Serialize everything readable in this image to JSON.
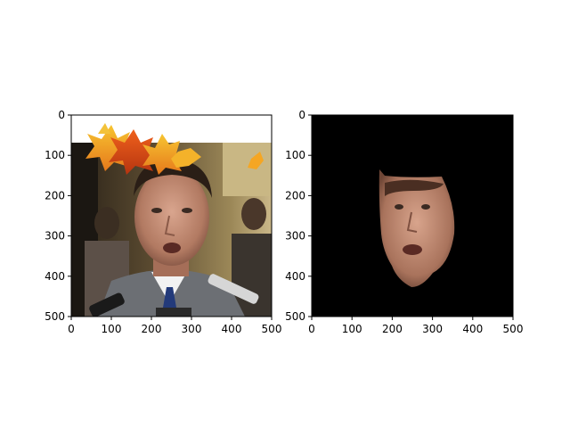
{
  "figure": {
    "background": "#ffffff",
    "axis_color": "#000000"
  },
  "chart_data": [
    {
      "type": "image",
      "title": "",
      "xlabel": "",
      "ylabel": "",
      "xlim": [
        0,
        500
      ],
      "ylim": [
        500,
        0
      ],
      "xticks": [
        0,
        100,
        200,
        300,
        400,
        500
      ],
      "yticks": [
        0,
        100,
        200,
        300,
        400,
        500
      ],
      "grid": false,
      "content": "photo of a man's face with autumn maple leaves near the top"
    },
    {
      "type": "image",
      "title": "",
      "xlabel": "",
      "ylabel": "",
      "xlim": [
        0,
        500
      ],
      "ylim": [
        500,
        0
      ],
      "xticks": [
        0,
        100,
        200,
        300,
        400,
        500
      ],
      "yticks": [
        0,
        100,
        200,
        300,
        400,
        500
      ],
      "grid": false,
      "content": "segmented face region on black background"
    }
  ]
}
